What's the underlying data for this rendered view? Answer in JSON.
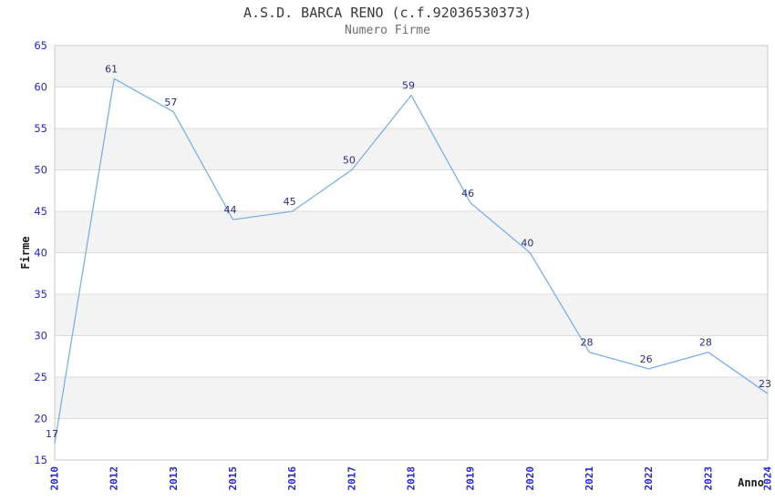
{
  "chart_data": {
    "type": "line",
    "title": "A.S.D. BARCA RENO (c.f.92036530373)",
    "subtitle": "Numero Firme",
    "xlabel": "Anno",
    "ylabel": "Firme",
    "categories": [
      "2010",
      "2012",
      "2013",
      "2015",
      "2016",
      "2017",
      "2018",
      "2019",
      "2020",
      "2021",
      "2022",
      "2023",
      "2024"
    ],
    "values": [
      17,
      61,
      57,
      44,
      45,
      50,
      59,
      46,
      40,
      28,
      26,
      28,
      23
    ],
    "ylim": [
      15,
      65
    ],
    "ytick_step": 5,
    "ytick_labels": [
      "15",
      "20",
      "25",
      "30",
      "35",
      "40",
      "45",
      "50",
      "55",
      "60",
      "65"
    ],
    "grid": "horizontal-bands",
    "legend": "none",
    "colors": {
      "line": "#7cb0e8",
      "point_label": "#2b2b80",
      "tick_label": "#2525d2",
      "band": "#f3f3f3",
      "gridline": "#dcdcdc",
      "border": "#c9c9c9",
      "title": "#3a3a3a",
      "subtitle": "#6e6e6e",
      "axis_label": "#1a1a1a",
      "background": "#ffffff"
    }
  }
}
